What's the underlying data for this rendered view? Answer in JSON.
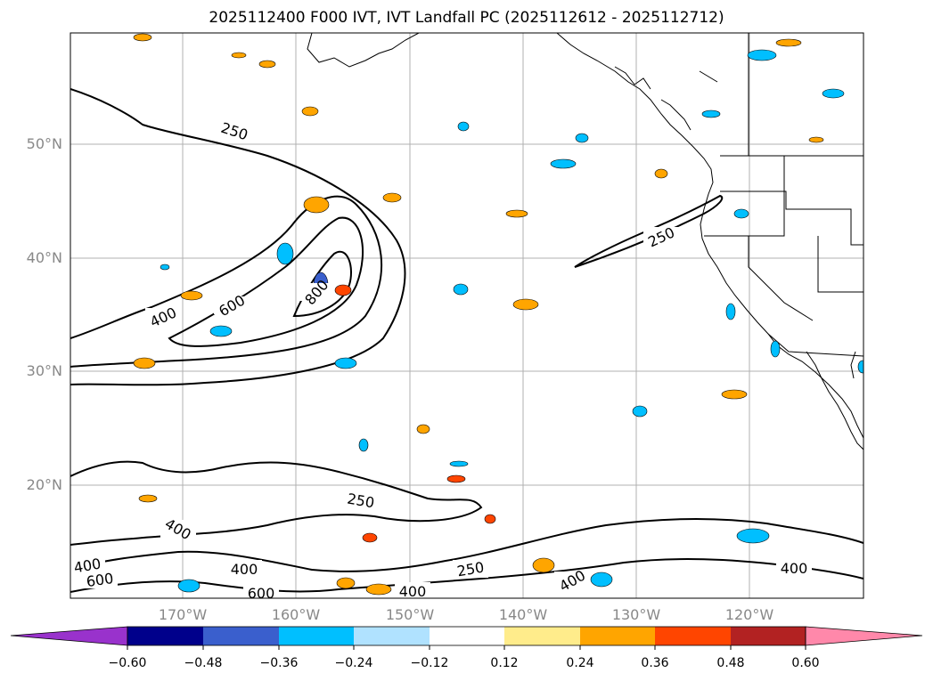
{
  "title": "2025112400 F000 IVT, IVT Landfall PC (2025112612 - 2025112712)",
  "map": {
    "lat_labels": [
      "50°N",
      "40°N",
      "30°N",
      "20°N"
    ],
    "lon_labels": [
      "170°W",
      "160°W",
      "150°W",
      "140°W",
      "130°W",
      "120°W"
    ],
    "contour_labels": [
      "250",
      "250",
      "400",
      "600",
      "800",
      "250",
      "400",
      "400",
      "600",
      "400",
      "600",
      "400",
      "250",
      "400",
      "400"
    ]
  },
  "colorbar": {
    "ticks": [
      "−0.60",
      "−0.48",
      "−0.36",
      "−0.24",
      "−0.12",
      "0.12",
      "0.24",
      "0.36",
      "0.48",
      "0.60"
    ],
    "colors": [
      "#9932cc",
      "#00008b",
      "#3a5fcd",
      "#00bfff",
      "#b0e2ff",
      "#ffffff",
      "#ffec8b",
      "#ffa500",
      "#ff4500",
      "#b22222",
      "#ff88aa"
    ]
  }
}
